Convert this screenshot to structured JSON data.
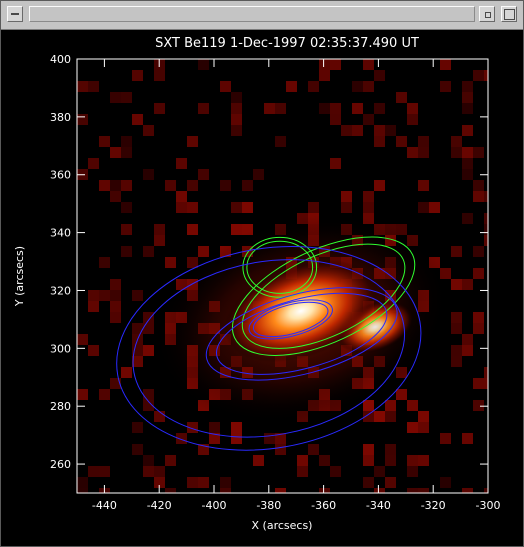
{
  "window": {
    "title": "",
    "controls": [
      "window-menu-icon",
      "minimize-icon",
      "maximize-icon"
    ]
  },
  "plot": {
    "title": "SXT Be119  1-Dec-1997 02:35:37.490 UT",
    "xlabel": "X (arcsecs)",
    "ylabel": "Y (arcsecs)",
    "xlim": [
      -450,
      -300
    ],
    "ylim": [
      250,
      400
    ],
    "xticks": [
      "-440",
      "-420",
      "-400",
      "-380",
      "-360",
      "-340",
      "-320",
      "-300"
    ],
    "yticks": [
      "260",
      "280",
      "300",
      "320",
      "340",
      "360",
      "380",
      "400"
    ],
    "colors": {
      "background": "#000000",
      "axes": "#ffffff",
      "contour_negative": "#2a2aff",
      "contour_positive": "#30ff30",
      "colormap": [
        "#000000",
        "#5a0000",
        "#b01a00",
        "#ff5a00",
        "#ffb23c",
        "#ffffff"
      ]
    }
  },
  "chart_data": {
    "type": "heatmap",
    "title": "SXT Be119  1-Dec-1997 02:35:37.490 UT",
    "xlabel": "X (arcsecs)",
    "ylabel": "Y (arcsecs)",
    "xlim": [
      -450,
      -300
    ],
    "ylim": [
      250,
      400
    ],
    "grid": false,
    "bright_core": {
      "x": -375,
      "y": 311
    },
    "secondary_source": {
      "x": -345,
      "y": 305
    },
    "contours": [
      {
        "color": "green",
        "center": [
          -360,
          318
        ],
        "rx": 32,
        "ry": 14,
        "rot": -25
      },
      {
        "color": "green",
        "center": [
          -376,
          328
        ],
        "rx": 12,
        "ry": 9,
        "rot": 0
      },
      {
        "color": "blue",
        "center": [
          -372,
          310
        ],
        "rx": 14,
        "ry": 5,
        "rot": -15
      },
      {
        "color": "blue",
        "center": [
          -368,
          305
        ],
        "rx": 32,
        "ry": 12,
        "rot": -15
      },
      {
        "color": "blue",
        "center": [
          -380,
          300
        ],
        "rx": 50,
        "ry": 30,
        "rot": -10
      }
    ]
  }
}
